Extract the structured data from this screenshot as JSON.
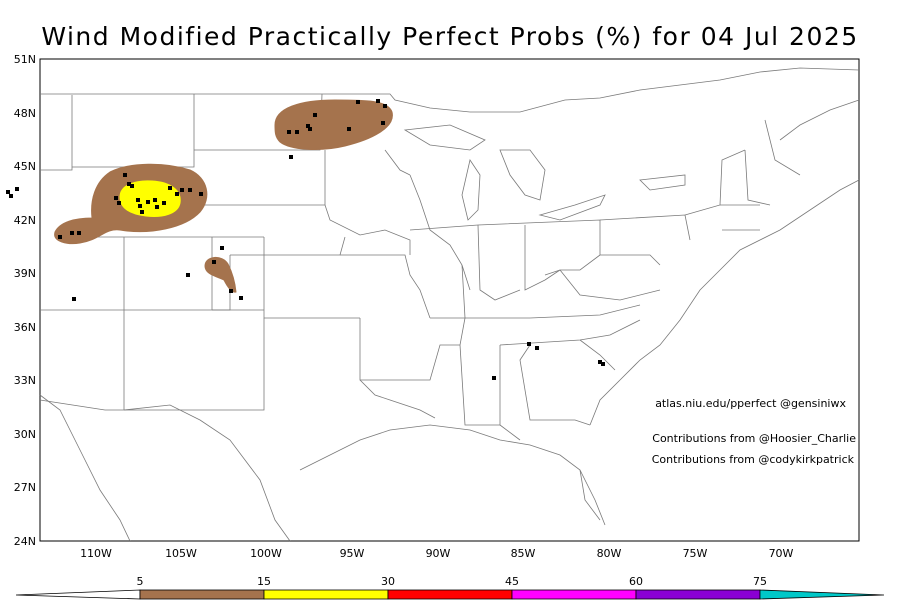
{
  "title": "Wind Modified Practically Perfect Probs (%) for 04 Jul 2025",
  "map": {
    "lat_labels": [
      "51N",
      "48N",
      "45N",
      "42N",
      "39N",
      "36N",
      "33N",
      "30N",
      "27N",
      "24N"
    ],
    "lon_labels": [
      "110W",
      "105W",
      "100W",
      "95W",
      "90W",
      "85W",
      "80W",
      "75W",
      "70W"
    ]
  },
  "credits": {
    "site": "atlas.niu.edu/pperfect @gensiniwx",
    "contrib1": "Contributions from @Hoosier_Charlie",
    "contrib2": "Contributions from @codykirkpatrick"
  },
  "legend": {
    "labels": [
      "5",
      "15",
      "30",
      "45",
      "60",
      "75"
    ],
    "colors": [
      "#ffffff",
      "#a5734d",
      "#ffff00",
      "#ff0000",
      "#ff00ff",
      "#8a00d4",
      "#00c8c8"
    ]
  },
  "contour_colors": {
    "p5": "#a5734d",
    "p15": "#ffff00"
  }
}
